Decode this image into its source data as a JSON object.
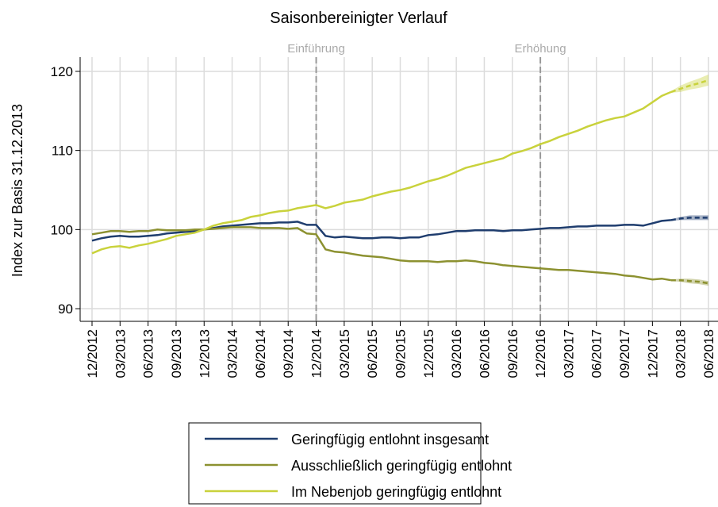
{
  "chart_data": {
    "type": "line",
    "title": "Saisonbereinigter Verlauf",
    "y_label": "Index zur Basis 31.12.2013",
    "categories": [
      "12/2012",
      null,
      null,
      "03/2013",
      null,
      null,
      "06/2013",
      null,
      null,
      "09/2013",
      null,
      null,
      "12/2013",
      null,
      null,
      "03/2014",
      null,
      null,
      "06/2014",
      null,
      null,
      "09/2014",
      null,
      null,
      "12/2014",
      null,
      null,
      "03/2015",
      null,
      null,
      "06/2015",
      null,
      null,
      "09/2015",
      null,
      null,
      "12/2015",
      null,
      null,
      "03/2016",
      null,
      null,
      "06/2016",
      null,
      null,
      "09/2016",
      null,
      null,
      "12/2016",
      null,
      null,
      "03/2017",
      null,
      null,
      "06/2017",
      null,
      null,
      "09/2017",
      null,
      null,
      "12/2017",
      null,
      null,
      "03/2018",
      null,
      null,
      "06/2018"
    ],
    "ylim": [
      88.4,
      121.8
    ],
    "yticks": [
      90,
      100,
      110,
      120
    ],
    "grid": true,
    "annotations": [
      {
        "text": "Einführung",
        "at": 24
      },
      {
        "text": "Erhöhung",
        "at": 48
      }
    ],
    "series": [
      {
        "name": "Geringfügig entlohnt insgesamt",
        "color": "#1f3d6e",
        "values": [
          98.6,
          98.9,
          99.1,
          99.2,
          99.1,
          99.1,
          99.2,
          99.3,
          99.5,
          99.6,
          99.7,
          99.8,
          100.0,
          100.2,
          100.4,
          100.5,
          100.6,
          100.7,
          100.8,
          100.8,
          100.9,
          100.9,
          101.0,
          100.6,
          100.6,
          99.2,
          99.0,
          99.1,
          99.0,
          98.9,
          98.9,
          99.0,
          99.0,
          98.9,
          99.0,
          99.0,
          99.3,
          99.4,
          99.6,
          99.8,
          99.8,
          99.9,
          99.9,
          99.9,
          99.8,
          99.9,
          99.9,
          100.0,
          100.1,
          100.2,
          100.2,
          100.3,
          100.4,
          100.4,
          100.5,
          100.5,
          100.5,
          100.6,
          100.6,
          100.5,
          100.8,
          101.1,
          101.2,
          null,
          null,
          null,
          null
        ],
        "forecast": [
          null,
          null,
          null,
          null,
          null,
          null,
          null,
          null,
          null,
          null,
          null,
          null,
          null,
          null,
          null,
          null,
          null,
          null,
          null,
          null,
          null,
          null,
          null,
          null,
          null,
          null,
          null,
          null,
          null,
          null,
          null,
          null,
          null,
          null,
          null,
          null,
          null,
          null,
          null,
          null,
          null,
          null,
          null,
          null,
          null,
          null,
          null,
          null,
          null,
          null,
          null,
          null,
          null,
          null,
          null,
          null,
          null,
          null,
          null,
          null,
          null,
          null,
          101.2,
          101.4,
          101.5,
          101.5,
          101.5
        ],
        "forecast_low": [
          null,
          null,
          null,
          null,
          null,
          null,
          null,
          null,
          null,
          null,
          null,
          null,
          null,
          null,
          null,
          null,
          null,
          null,
          null,
          null,
          null,
          null,
          null,
          null,
          null,
          null,
          null,
          null,
          null,
          null,
          null,
          null,
          null,
          null,
          null,
          null,
          null,
          null,
          null,
          null,
          null,
          null,
          null,
          null,
          null,
          null,
          null,
          null,
          null,
          null,
          null,
          null,
          null,
          null,
          null,
          null,
          null,
          null,
          null,
          null,
          null,
          null,
          101.1,
          101.2,
          101.2,
          101.2,
          101.2
        ],
        "forecast_high": [
          null,
          null,
          null,
          null,
          null,
          null,
          null,
          null,
          null,
          null,
          null,
          null,
          null,
          null,
          null,
          null,
          null,
          null,
          null,
          null,
          null,
          null,
          null,
          null,
          null,
          null,
          null,
          null,
          null,
          null,
          null,
          null,
          null,
          null,
          null,
          null,
          null,
          null,
          null,
          null,
          null,
          null,
          null,
          null,
          null,
          null,
          null,
          null,
          null,
          null,
          null,
          null,
          null,
          null,
          null,
          null,
          null,
          null,
          null,
          null,
          null,
          null,
          101.3,
          101.6,
          101.8,
          101.8,
          101.8
        ]
      },
      {
        "name": "Ausschließlich geringfügig entlohnt",
        "color": "#8c9130",
        "values": [
          99.4,
          99.6,
          99.8,
          99.8,
          99.7,
          99.8,
          99.8,
          100.0,
          99.9,
          99.9,
          99.9,
          100.0,
          100.0,
          100.1,
          100.2,
          100.3,
          100.3,
          100.3,
          100.2,
          100.2,
          100.2,
          100.1,
          100.2,
          99.5,
          99.4,
          97.5,
          97.2,
          97.1,
          96.9,
          96.7,
          96.6,
          96.5,
          96.3,
          96.1,
          96.0,
          96.0,
          96.0,
          95.9,
          96.0,
          96.0,
          96.1,
          96.0,
          95.8,
          95.7,
          95.5,
          95.4,
          95.3,
          95.2,
          95.1,
          95.0,
          94.9,
          94.9,
          94.8,
          94.7,
          94.6,
          94.5,
          94.4,
          94.2,
          94.1,
          93.9,
          93.7,
          93.8,
          93.6,
          null,
          null,
          null,
          null
        ],
        "forecast": [
          null,
          null,
          null,
          null,
          null,
          null,
          null,
          null,
          null,
          null,
          null,
          null,
          null,
          null,
          null,
          null,
          null,
          null,
          null,
          null,
          null,
          null,
          null,
          null,
          null,
          null,
          null,
          null,
          null,
          null,
          null,
          null,
          null,
          null,
          null,
          null,
          null,
          null,
          null,
          null,
          null,
          null,
          null,
          null,
          null,
          null,
          null,
          null,
          null,
          null,
          null,
          null,
          null,
          null,
          null,
          null,
          null,
          null,
          null,
          null,
          null,
          null,
          93.6,
          93.6,
          93.5,
          93.4,
          93.2
        ],
        "forecast_low": [
          null,
          null,
          null,
          null,
          null,
          null,
          null,
          null,
          null,
          null,
          null,
          null,
          null,
          null,
          null,
          null,
          null,
          null,
          null,
          null,
          null,
          null,
          null,
          null,
          null,
          null,
          null,
          null,
          null,
          null,
          null,
          null,
          null,
          null,
          null,
          null,
          null,
          null,
          null,
          null,
          null,
          null,
          null,
          null,
          null,
          null,
          null,
          null,
          null,
          null,
          null,
          null,
          null,
          null,
          null,
          null,
          null,
          null,
          null,
          null,
          null,
          null,
          93.5,
          93.4,
          93.2,
          93.1,
          92.9
        ],
        "forecast_high": [
          null,
          null,
          null,
          null,
          null,
          null,
          null,
          null,
          null,
          null,
          null,
          null,
          null,
          null,
          null,
          null,
          null,
          null,
          null,
          null,
          null,
          null,
          null,
          null,
          null,
          null,
          null,
          null,
          null,
          null,
          null,
          null,
          null,
          null,
          null,
          null,
          null,
          null,
          null,
          null,
          null,
          null,
          null,
          null,
          null,
          null,
          null,
          null,
          null,
          null,
          null,
          null,
          null,
          null,
          null,
          null,
          null,
          null,
          null,
          null,
          null,
          null,
          93.7,
          93.8,
          93.8,
          93.7,
          93.5
        ]
      },
      {
        "name": "Im Nebenjob geringfügig entlohnt",
        "color": "#c9d23c",
        "values": [
          97.0,
          97.5,
          97.8,
          97.9,
          97.7,
          98.0,
          98.2,
          98.5,
          98.8,
          99.2,
          99.4,
          99.6,
          100.0,
          100.5,
          100.8,
          101.0,
          101.2,
          101.6,
          101.8,
          102.1,
          102.3,
          102.4,
          102.7,
          102.9,
          103.1,
          102.7,
          103.0,
          103.4,
          103.6,
          103.8,
          104.2,
          104.5,
          104.8,
          105.0,
          105.3,
          105.7,
          106.1,
          106.4,
          106.8,
          107.3,
          107.8,
          108.1,
          108.4,
          108.7,
          109.0,
          109.6,
          109.9,
          110.3,
          110.8,
          111.2,
          111.7,
          112.1,
          112.5,
          113.0,
          113.4,
          113.8,
          114.1,
          114.3,
          114.8,
          115.3,
          116.1,
          116.9,
          117.4,
          null,
          null,
          null,
          null
        ],
        "forecast": [
          null,
          null,
          null,
          null,
          null,
          null,
          null,
          null,
          null,
          null,
          null,
          null,
          null,
          null,
          null,
          null,
          null,
          null,
          null,
          null,
          null,
          null,
          null,
          null,
          null,
          null,
          null,
          null,
          null,
          null,
          null,
          null,
          null,
          null,
          null,
          null,
          null,
          null,
          null,
          null,
          null,
          null,
          null,
          null,
          null,
          null,
          null,
          null,
          null,
          null,
          null,
          null,
          null,
          null,
          null,
          null,
          null,
          null,
          null,
          null,
          null,
          null,
          117.4,
          117.8,
          118.2,
          118.5,
          118.9
        ],
        "forecast_low": [
          null,
          null,
          null,
          null,
          null,
          null,
          null,
          null,
          null,
          null,
          null,
          null,
          null,
          null,
          null,
          null,
          null,
          null,
          null,
          null,
          null,
          null,
          null,
          null,
          null,
          null,
          null,
          null,
          null,
          null,
          null,
          null,
          null,
          null,
          null,
          null,
          null,
          null,
          null,
          null,
          null,
          null,
          null,
          null,
          null,
          null,
          null,
          null,
          null,
          null,
          null,
          null,
          null,
          null,
          null,
          null,
          null,
          null,
          null,
          null,
          null,
          null,
          117.3,
          117.4,
          117.7,
          117.9,
          118.2
        ],
        "forecast_high": [
          null,
          null,
          null,
          null,
          null,
          null,
          null,
          null,
          null,
          null,
          null,
          null,
          null,
          null,
          null,
          null,
          null,
          null,
          null,
          null,
          null,
          null,
          null,
          null,
          null,
          null,
          null,
          null,
          null,
          null,
          null,
          null,
          null,
          null,
          null,
          null,
          null,
          null,
          null,
          null,
          null,
          null,
          null,
          null,
          null,
          null,
          null,
          null,
          null,
          null,
          null,
          null,
          null,
          null,
          null,
          null,
          null,
          null,
          null,
          null,
          null,
          null,
          117.5,
          118.2,
          118.7,
          119.1,
          119.6
        ]
      }
    ]
  }
}
